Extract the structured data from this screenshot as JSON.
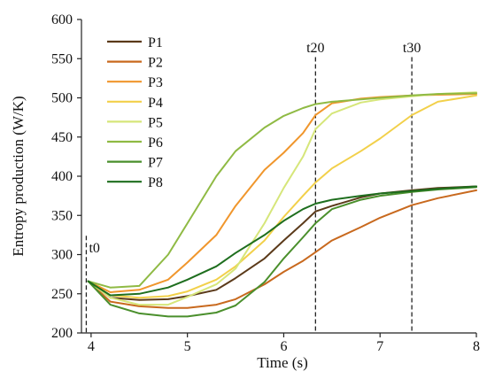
{
  "chart_data": {
    "type": "line",
    "title": "",
    "xlabel": "Time (s)",
    "ylabel": "Entropy production (W/K)",
    "xlim": [
      3.9,
      8
    ],
    "ylim": [
      200,
      600
    ],
    "xticks": [
      4,
      5,
      6,
      7,
      8
    ],
    "yticks": [
      200,
      250,
      300,
      350,
      400,
      450,
      500,
      550,
      600
    ],
    "grid": false,
    "legend_position": "top-left",
    "markers": [
      {
        "label": "t0",
        "x": 3.95
      },
      {
        "label": "t20",
        "x": 6.33
      },
      {
        "label": "t30",
        "x": 7.33
      }
    ],
    "series": [
      {
        "name": "P1",
        "color": "#5b3a1a",
        "x": [
          3.97,
          4.2,
          4.5,
          4.8,
          5.0,
          5.3,
          5.5,
          5.8,
          6.0,
          6.2,
          6.33,
          6.5,
          6.8,
          7.0,
          7.33,
          7.6,
          8.0
        ],
        "y": [
          266,
          245,
          242,
          243,
          247,
          255,
          270,
          295,
          318,
          340,
          355,
          362,
          373,
          378,
          382,
          385,
          387
        ]
      },
      {
        "name": "P2",
        "color": "#c8691e",
        "x": [
          3.97,
          4.2,
          4.5,
          4.8,
          5.0,
          5.3,
          5.5,
          5.8,
          6.0,
          6.2,
          6.33,
          6.5,
          6.8,
          7.0,
          7.33,
          7.6,
          8.0
        ],
        "y": [
          266,
          240,
          234,
          232,
          232,
          236,
          243,
          262,
          278,
          292,
          303,
          318,
          335,
          347,
          363,
          372,
          382
        ]
      },
      {
        "name": "P3",
        "color": "#f0962c",
        "x": [
          3.97,
          4.2,
          4.5,
          4.8,
          5.0,
          5.3,
          5.5,
          5.8,
          6.0,
          6.2,
          6.33,
          6.5,
          6.8,
          7.0,
          7.33,
          7.6,
          8.0
        ],
        "y": [
          266,
          252,
          255,
          268,
          290,
          325,
          362,
          408,
          430,
          455,
          478,
          493,
          499,
          501,
          503,
          504,
          505
        ]
      },
      {
        "name": "P4",
        "color": "#f2d04a",
        "x": [
          3.97,
          4.2,
          4.5,
          4.8,
          5.0,
          5.3,
          5.5,
          5.8,
          6.0,
          6.2,
          6.33,
          6.5,
          6.8,
          7.0,
          7.33,
          7.6,
          8.0
        ],
        "y": [
          266,
          248,
          245,
          247,
          253,
          268,
          285,
          318,
          348,
          375,
          392,
          410,
          432,
          448,
          478,
          495,
          503
        ]
      },
      {
        "name": "P5",
        "color": "#d6e67a",
        "x": [
          3.97,
          4.2,
          4.5,
          4.8,
          5.0,
          5.3,
          5.5,
          5.8,
          6.0,
          6.2,
          6.33,
          6.5,
          6.8,
          7.0,
          7.33,
          7.6,
          8.0
        ],
        "y": [
          266,
          245,
          236,
          236,
          246,
          262,
          282,
          340,
          385,
          425,
          460,
          480,
          494,
          498,
          502,
          505,
          507
        ]
      },
      {
        "name": "P6",
        "color": "#8fba44",
        "x": [
          3.97,
          4.2,
          4.5,
          4.8,
          5.0,
          5.3,
          5.5,
          5.8,
          6.0,
          6.2,
          6.33,
          6.5,
          6.8,
          7.0,
          7.33,
          7.6,
          8.0
        ],
        "y": [
          266,
          258,
          260,
          300,
          340,
          400,
          432,
          462,
          477,
          487,
          492,
          495,
          498,
          500,
          503,
          505,
          506
        ]
      },
      {
        "name": "P7",
        "color": "#4a8f2c",
        "x": [
          3.97,
          4.2,
          4.5,
          4.8,
          5.0,
          5.3,
          5.5,
          5.8,
          6.0,
          6.2,
          6.33,
          6.5,
          6.8,
          7.0,
          7.33,
          7.6,
          8.0
        ],
        "y": [
          266,
          236,
          225,
          221,
          221,
          226,
          235,
          265,
          295,
          322,
          340,
          358,
          370,
          375,
          380,
          383,
          386
        ]
      },
      {
        "name": "P8",
        "color": "#1e6e1e",
        "x": [
          3.97,
          4.2,
          4.5,
          4.8,
          5.0,
          5.3,
          5.5,
          5.8,
          6.0,
          6.2,
          6.33,
          6.5,
          6.8,
          7.0,
          7.33,
          7.6,
          8.0
        ],
        "y": [
          266,
          248,
          250,
          258,
          268,
          285,
          302,
          325,
          343,
          358,
          365,
          370,
          375,
          378,
          381,
          384,
          387
        ]
      }
    ]
  }
}
